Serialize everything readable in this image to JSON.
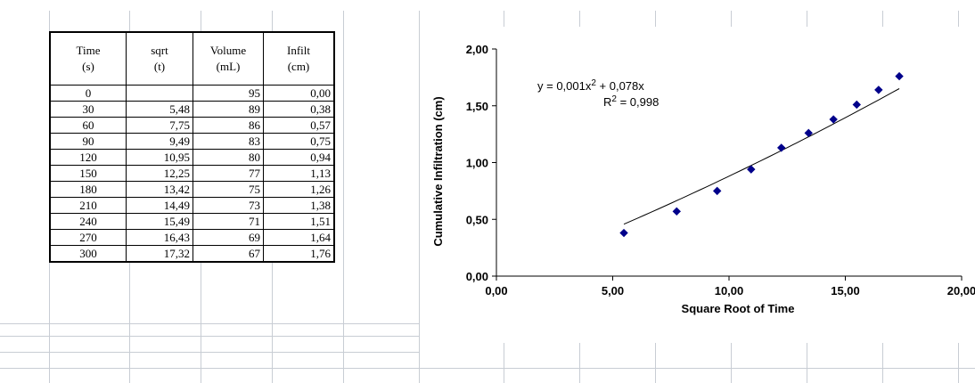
{
  "table": {
    "headers": [
      [
        "Time",
        "(s)"
      ],
      [
        "sqrt",
        "(t)"
      ],
      [
        "Volume",
        "(mL)"
      ],
      [
        "Infilt",
        "(cm)"
      ]
    ],
    "rows": [
      [
        "0",
        "",
        "95",
        "0,00"
      ],
      [
        "30",
        "5,48",
        "89",
        "0,38"
      ],
      [
        "60",
        "7,75",
        "86",
        "0,57"
      ],
      [
        "90",
        "9,49",
        "83",
        "0,75"
      ],
      [
        "120",
        "10,95",
        "80",
        "0,94"
      ],
      [
        "150",
        "12,25",
        "77",
        "1,13"
      ],
      [
        "180",
        "13,42",
        "75",
        "1,26"
      ],
      [
        "210",
        "14,49",
        "73",
        "1,38"
      ],
      [
        "240",
        "15,49",
        "71",
        "1,51"
      ],
      [
        "270",
        "16,43",
        "69",
        "1,64"
      ],
      [
        "300",
        "17,32",
        "67",
        "1,76"
      ]
    ]
  },
  "chart_data": {
    "type": "scatter",
    "xlabel": "Square Root of Time",
    "ylabel": "Cumulative Infiltration (cm)",
    "xlim": [
      0,
      20
    ],
    "ylim": [
      0,
      2
    ],
    "x_ticks": [
      "0,00",
      "5,00",
      "10,00",
      "15,00",
      "20,00"
    ],
    "y_ticks": [
      "0,00",
      "0,50",
      "1,00",
      "1,50",
      "2,00"
    ],
    "x_tick_values": [
      0,
      5,
      10,
      15,
      20
    ],
    "y_tick_values": [
      0,
      0.5,
      1,
      1.5,
      2
    ],
    "grid": false,
    "legend": "none",
    "marker_color": "#00008b",
    "series": [
      {
        "x": [
          5.48,
          7.75,
          9.49,
          10.95,
          12.25,
          13.42,
          14.49,
          15.49,
          16.43,
          17.32
        ],
        "y": [
          0.38,
          0.57,
          0.75,
          0.94,
          1.13,
          1.26,
          1.38,
          1.51,
          1.64,
          1.76
        ]
      }
    ],
    "trendline": {
      "type": "polynomial",
      "coefficients": {
        "a": 0.001,
        "b": 0.078,
        "c": 0
      },
      "x_range": [
        5.48,
        17.32
      ],
      "equation_prefix": "y = 0,001x",
      "equation_exp": "2",
      "equation_suffix": " + 0,078x",
      "r2_prefix": "R",
      "r2_exp": "2",
      "r2_suffix": " = 0,998"
    }
  }
}
